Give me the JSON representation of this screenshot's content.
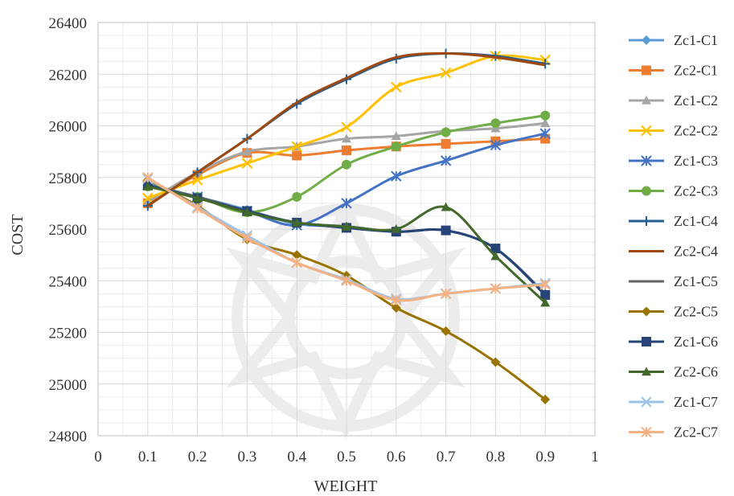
{
  "chart_data": {
    "type": "line",
    "title": "",
    "xlabel": "WEIGHT",
    "ylabel": "COST",
    "xlim": [
      0,
      1
    ],
    "ylim": [
      24800,
      26400
    ],
    "x_ticks": [
      "0",
      "0.1",
      "0.2",
      "0.3",
      "0.4",
      "0.5",
      "0.6",
      "0.7",
      "0.8",
      "0.9",
      "1"
    ],
    "y_ticks": [
      "24800",
      "25000",
      "25200",
      "25400",
      "25600",
      "25800",
      "26000",
      "26200",
      "26400"
    ],
    "grid": true,
    "legend_position": "right",
    "x": [
      0.1,
      0.2,
      0.3,
      0.4,
      0.5,
      0.6,
      0.7,
      0.8,
      0.9
    ],
    "series": [
      {
        "name": "Zc1-C1",
        "color": "#5b9bd5",
        "marker": "diamond",
        "values": [
          25775,
          25725,
          25675,
          25620,
          25610,
          25590,
          25595,
          25525,
          25350
        ]
      },
      {
        "name": "Zc2-C1",
        "color": "#ed7d31",
        "marker": "square",
        "values": [
          25700,
          25810,
          25895,
          25885,
          25905,
          25920,
          25930,
          25940,
          25950
        ]
      },
      {
        "name": "Zc1-C2",
        "color": "#a5a5a5",
        "marker": "triangle",
        "values": [
          25705,
          25820,
          25900,
          25920,
          25950,
          25960,
          25980,
          25990,
          26010
        ]
      },
      {
        "name": "Zc2-C2",
        "color": "#ffc000",
        "marker": "x",
        "values": [
          25720,
          25790,
          25855,
          25920,
          25995,
          26150,
          26205,
          26270,
          26255
        ]
      },
      {
        "name": "Zc1-C3",
        "color": "#4472c4",
        "marker": "star",
        "values": [
          25770,
          25725,
          25670,
          25615,
          25700,
          25805,
          25865,
          25925,
          25970
        ]
      },
      {
        "name": "Zc2-C3",
        "color": "#70ad47",
        "marker": "circle",
        "values": [
          25765,
          25725,
          25665,
          25725,
          25850,
          25920,
          25975,
          26010,
          26040
        ]
      },
      {
        "name": "Zc1-C4",
        "color": "#255e91",
        "marker": "plus",
        "values": [
          25690,
          25820,
          25950,
          26085,
          26180,
          26260,
          26280,
          26270,
          26240
        ]
      },
      {
        "name": "Zc2-C4",
        "color": "#9e480e",
        "marker": "none",
        "values": [
          25690,
          25820,
          25950,
          26090,
          26185,
          26265,
          26280,
          26265,
          26235
        ]
      },
      {
        "name": "Zc1-C5",
        "color": "#636363",
        "marker": "none",
        "values": [
          25770,
          25725,
          25670,
          25625,
          25610,
          25590,
          25595,
          25525,
          25350
        ]
      },
      {
        "name": "Zc2-C5",
        "color": "#997300",
        "marker": "diamond",
        "values": [
          25790,
          25690,
          25560,
          25500,
          25420,
          25295,
          25205,
          25085,
          24940
        ]
      },
      {
        "name": "Zc1-C6",
        "color": "#264478",
        "marker": "square",
        "values": [
          25770,
          25720,
          25670,
          25625,
          25605,
          25590,
          25595,
          25525,
          25345
        ]
      },
      {
        "name": "Zc2-C6",
        "color": "#43682b",
        "marker": "triangle",
        "values": [
          25765,
          25720,
          25665,
          25625,
          25610,
          25600,
          25685,
          25495,
          25315
        ]
      },
      {
        "name": "Zc1-C7",
        "color": "#9dc3e6",
        "marker": "x",
        "values": [
          25795,
          25685,
          25575,
          25470,
          25405,
          25330,
          25350,
          25370,
          25390
        ]
      },
      {
        "name": "Zc2-C7",
        "color": "#f4b183",
        "marker": "star",
        "values": [
          25800,
          25680,
          25565,
          25470,
          25400,
          25325,
          25350,
          25370,
          25385
        ]
      }
    ]
  }
}
